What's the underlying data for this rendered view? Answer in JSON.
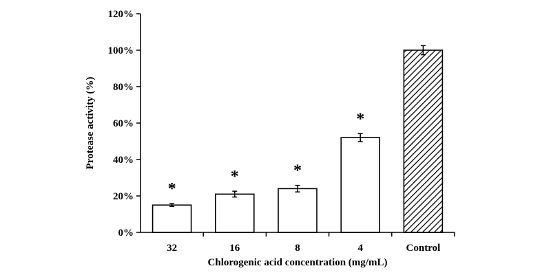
{
  "chart_data": {
    "type": "bar",
    "title": "",
    "xlabel": "Chlorogenic acid concentration (mg/mL)",
    "ylabel": "Protease activity (%)",
    "ylim": [
      0,
      120
    ],
    "yticks": [
      "0%",
      "20%",
      "40%",
      "60%",
      "80%",
      "100%",
      "120%"
    ],
    "ytick_values": [
      0,
      20,
      40,
      60,
      80,
      100,
      120
    ],
    "categories": [
      "32",
      "16",
      "8",
      "4",
      "Control"
    ],
    "values": [
      15,
      21,
      24,
      52,
      100
    ],
    "errors": [
      0.8,
      1.6,
      1.8,
      2.2,
      2.5
    ],
    "annotations": [
      "*",
      "*",
      "*",
      "*",
      ""
    ],
    "fills": [
      "plain",
      "plain",
      "plain",
      "plain",
      "hatched"
    ],
    "grid": false,
    "legend": "none"
  }
}
